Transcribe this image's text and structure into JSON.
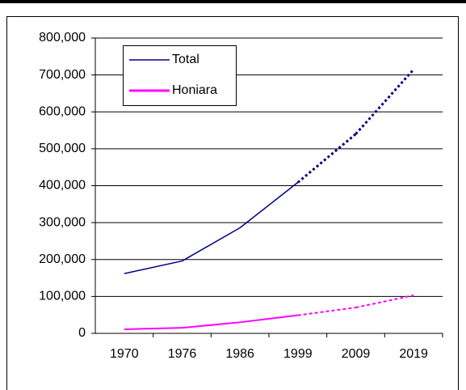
{
  "chart_data": {
    "type": "line",
    "categories": [
      "1970",
      "1976",
      "1986",
      "1999",
      "2009",
      "2019"
    ],
    "series": [
      {
        "name": "Total",
        "color": "#000080",
        "values": [
          162000,
          196000,
          286000,
          409000,
          540000,
          715000
        ],
        "dotted_from_index": 3
      },
      {
        "name": "Honiara",
        "color": "#ff00ff",
        "values": [
          11000,
          15000,
          30000,
          49000,
          70000,
          103000
        ],
        "dotted_from_index": 3
      }
    ],
    "ylim": [
      0,
      800000
    ],
    "yticks": [
      0,
      {
        "value": 100000,
        "label": "100,000"
      },
      {
        "value": 200000,
        "label": "200,000"
      },
      {
        "value": 300000,
        "label": "300,000"
      },
      {
        "value": 400000,
        "label": "400,000"
      },
      {
        "value": 500000,
        "label": "500,000"
      },
      {
        "value": 600000,
        "label": "600,000"
      },
      {
        "value": 700000,
        "label": "700,000"
      },
      {
        "value": 800000,
        "label": "800,000"
      }
    ],
    "grid": true
  }
}
